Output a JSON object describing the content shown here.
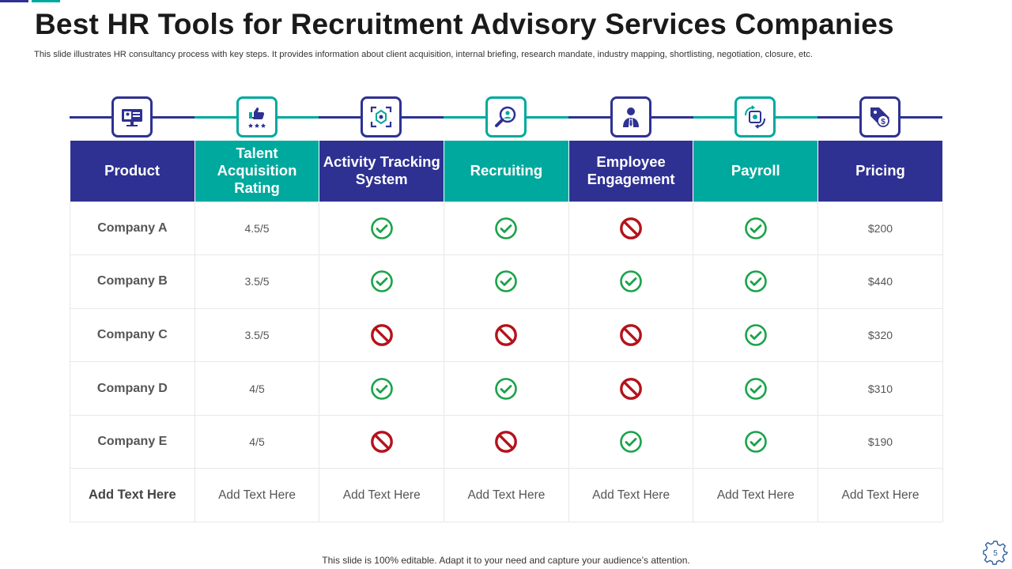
{
  "title": "Best HR Tools for Recruitment Advisory Services Companies",
  "subtitle": "This slide illustrates HR consultancy process with key steps. It provides information about client acquisition, internal briefing, research mandate, industry mapping, shortlisting, negotiation, closure, etc.",
  "colors": {
    "navy": "#2e3192",
    "teal": "#00a99d",
    "check": "#1aa34a",
    "ban": "#b5121b"
  },
  "icons": [
    {
      "name": "product-presentation-icon",
      "style": "navy"
    },
    {
      "name": "rating-thumbs-up-icon",
      "style": "teal"
    },
    {
      "name": "activity-tracking-icon",
      "style": "navy"
    },
    {
      "name": "recruiting-search-icon",
      "style": "teal"
    },
    {
      "name": "employee-icon",
      "style": "navy"
    },
    {
      "name": "payroll-exchange-icon",
      "style": "teal"
    },
    {
      "name": "pricing-tag-icon",
      "style": "navy"
    }
  ],
  "table": {
    "headers": [
      "Product",
      "Talent Acquisition Rating",
      "Activity Tracking System",
      "Recruiting",
      "Employee Engagement",
      "Payroll",
      "Pricing"
    ],
    "header_styles": [
      "navy",
      "teal",
      "navy",
      "teal",
      "navy",
      "teal",
      "navy"
    ],
    "rows": [
      {
        "company": "Company A",
        "rating": "4.5/5",
        "activity": "yes",
        "recruiting": "yes",
        "engagement": "no",
        "payroll": "yes",
        "price": "$200"
      },
      {
        "company": "Company B",
        "rating": "3.5/5",
        "activity": "yes",
        "recruiting": "yes",
        "engagement": "yes",
        "payroll": "yes",
        "price": "$440"
      },
      {
        "company": "Company C",
        "rating": "3.5/5",
        "activity": "no",
        "recruiting": "no",
        "engagement": "no",
        "payroll": "yes",
        "price": "$320"
      },
      {
        "company": "Company D",
        "rating": "4/5",
        "activity": "yes",
        "recruiting": "yes",
        "engagement": "no",
        "payroll": "yes",
        "price": "$310"
      },
      {
        "company": "Company E",
        "rating": "4/5",
        "activity": "no",
        "recruiting": "no",
        "engagement": "yes",
        "payroll": "yes",
        "price": "$190"
      }
    ],
    "last_row": [
      "Add Text Here",
      "Add Text Here",
      "Add Text Here",
      "Add Text Here",
      "Add Text Here",
      "Add Text Here",
      "Add Text Here"
    ]
  },
  "footer": "This slide is 100% editable. Adapt it to your need and capture your audience’s attention.",
  "page_number": "5"
}
